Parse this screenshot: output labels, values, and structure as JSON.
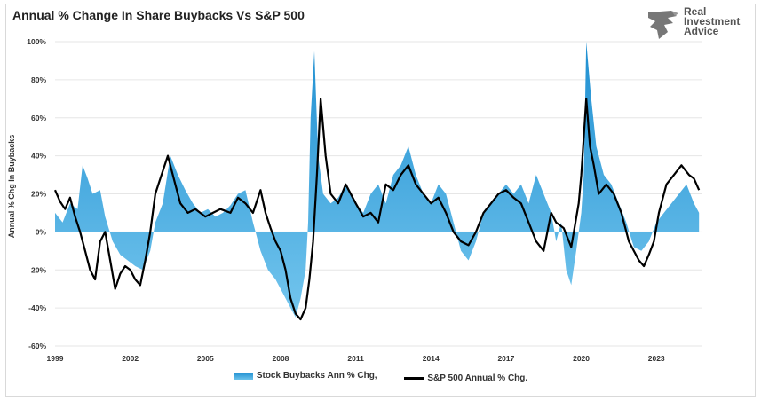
{
  "chart_data": {
    "type": "area",
    "title": "Annual % Change In Share Buybacks Vs S&P 500",
    "ylabel": "Annual % Chg In Buybacks",
    "xlabel": "",
    "ylim": [
      -60,
      100
    ],
    "xlim": [
      1999,
      2024.8
    ],
    "y_ticks": [
      -60,
      -40,
      -20,
      0,
      20,
      40,
      60,
      80,
      100
    ],
    "y_tick_labels": [
      "-60%",
      "-40%",
      "-20%",
      "0%",
      "20%",
      "40%",
      "60%",
      "80%",
      "100%"
    ],
    "x_ticks": [
      1999,
      2002,
      2005,
      2008,
      2011,
      2014,
      2017,
      2020,
      2023
    ],
    "x_tick_labels": [
      "1999",
      "2002",
      "2005",
      "2008",
      "2011",
      "2014",
      "2017",
      "2020",
      "2023"
    ],
    "grid": "horizontal",
    "legend_position": "bottom",
    "series": [
      {
        "name": "Stock Buybacks Ann % Chg,",
        "style": "area",
        "color": "#2a9ad6",
        "x": [
          1999.0,
          1999.3,
          1999.6,
          1999.9,
          2000.1,
          2000.3,
          2000.5,
          2000.8,
          2001.0,
          2001.3,
          2001.6,
          2001.9,
          2002.2,
          2002.5,
          2002.8,
          2003.0,
          2003.3,
          2003.6,
          2003.9,
          2004.2,
          2004.5,
          2004.8,
          2005.1,
          2005.4,
          2005.7,
          2006.0,
          2006.3,
          2006.6,
          2006.9,
          2007.2,
          2007.5,
          2007.8,
          2008.0,
          2008.2,
          2008.4,
          2008.6,
          2008.8,
          2009.0,
          2009.1,
          2009.2,
          2009.35,
          2009.5,
          2009.7,
          2010.0,
          2010.3,
          2010.6,
          2011.0,
          2011.3,
          2011.6,
          2011.9,
          2012.2,
          2012.5,
          2012.8,
          2013.1,
          2013.4,
          2013.7,
          2014.0,
          2014.3,
          2014.6,
          2014.9,
          2015.2,
          2015.5,
          2015.8,
          2016.1,
          2016.4,
          2016.7,
          2017.0,
          2017.3,
          2017.6,
          2017.9,
          2018.2,
          2018.5,
          2018.8,
          2019.0,
          2019.2,
          2019.4,
          2019.6,
          2019.8,
          2020.0,
          2020.1,
          2020.2,
          2020.4,
          2020.6,
          2020.9,
          2021.2,
          2021.5,
          2021.8,
          2022.1,
          2022.4,
          2022.7,
          2023.0,
          2023.3,
          2023.6,
          2023.9,
          2024.2,
          2024.5,
          2024.7
        ],
        "values": [
          10,
          5,
          15,
          12,
          35,
          28,
          20,
          22,
          8,
          -5,
          -12,
          -15,
          -18,
          -20,
          -10,
          5,
          15,
          40,
          30,
          22,
          15,
          10,
          12,
          8,
          10,
          14,
          20,
          22,
          5,
          -10,
          -20,
          -25,
          -30,
          -35,
          -40,
          -45,
          -35,
          -20,
          5,
          60,
          95,
          40,
          20,
          15,
          18,
          25,
          15,
          10,
          20,
          25,
          15,
          30,
          35,
          45,
          30,
          20,
          15,
          25,
          20,
          5,
          -10,
          -15,
          -5,
          10,
          15,
          20,
          25,
          20,
          25,
          15,
          30,
          20,
          10,
          -5,
          5,
          -20,
          -28,
          -10,
          10,
          30,
          100,
          70,
          45,
          30,
          25,
          15,
          5,
          -8,
          -10,
          -5,
          5,
          10,
          15,
          20,
          25,
          15,
          10
        ]
      },
      {
        "name": "S&P 500 Annual % Chg.",
        "style": "line",
        "color": "#000000",
        "x": [
          1999.0,
          1999.2,
          1999.4,
          1999.6,
          1999.8,
          2000.0,
          2000.2,
          2000.4,
          2000.6,
          2000.8,
          2001.0,
          2001.2,
          2001.4,
          2001.6,
          2001.8,
          2002.0,
          2002.2,
          2002.4,
          2002.6,
          2002.8,
          2003.0,
          2003.2,
          2003.5,
          2003.8,
          2004.0,
          2004.3,
          2004.6,
          2005.0,
          2005.3,
          2005.6,
          2006.0,
          2006.3,
          2006.6,
          2006.9,
          2007.2,
          2007.4,
          2007.6,
          2007.8,
          2008.0,
          2008.2,
          2008.4,
          2008.6,
          2008.8,
          2009.0,
          2009.15,
          2009.3,
          2009.45,
          2009.6,
          2009.8,
          2010.0,
          2010.3,
          2010.6,
          2011.0,
          2011.3,
          2011.6,
          2011.9,
          2012.2,
          2012.5,
          2012.8,
          2013.1,
          2013.4,
          2013.7,
          2014.0,
          2014.3,
          2014.6,
          2014.9,
          2015.2,
          2015.5,
          2015.8,
          2016.1,
          2016.4,
          2016.7,
          2017.0,
          2017.3,
          2017.6,
          2017.9,
          2018.2,
          2018.5,
          2018.8,
          2019.0,
          2019.3,
          2019.6,
          2019.9,
          2020.0,
          2020.2,
          2020.35,
          2020.5,
          2020.7,
          2021.0,
          2021.3,
          2021.6,
          2021.9,
          2022.1,
          2022.3,
          2022.5,
          2022.7,
          2022.9,
          2023.1,
          2023.4,
          2023.7,
          2024.0,
          2024.3,
          2024.5,
          2024.7
        ],
        "values": [
          22,
          16,
          12,
          18,
          8,
          0,
          -10,
          -20,
          -25,
          -5,
          0,
          -15,
          -30,
          -22,
          -18,
          -20,
          -25,
          -28,
          -15,
          0,
          20,
          28,
          40,
          25,
          15,
          10,
          12,
          8,
          10,
          12,
          10,
          18,
          15,
          10,
          22,
          10,
          2,
          -5,
          -10,
          -20,
          -35,
          -43,
          -46,
          -40,
          -25,
          -5,
          30,
          70,
          40,
          20,
          15,
          25,
          15,
          8,
          10,
          5,
          25,
          22,
          30,
          35,
          25,
          20,
          15,
          18,
          10,
          0,
          -5,
          -7,
          0,
          10,
          15,
          20,
          22,
          18,
          15,
          5,
          -5,
          -10,
          10,
          5,
          2,
          -8,
          15,
          30,
          70,
          45,
          35,
          20,
          25,
          20,
          10,
          -5,
          -10,
          -15,
          -18,
          -12,
          -5,
          10,
          25,
          30,
          35,
          30,
          28,
          22
        ]
      }
    ]
  },
  "logo": {
    "line1": "Real",
    "line2": "Investment",
    "line3": "Advice"
  },
  "colors": {
    "area_top": "#1f8fd1",
    "area_bottom": "#74c6ee",
    "line": "#000000",
    "grid": "#e6e6e6"
  }
}
